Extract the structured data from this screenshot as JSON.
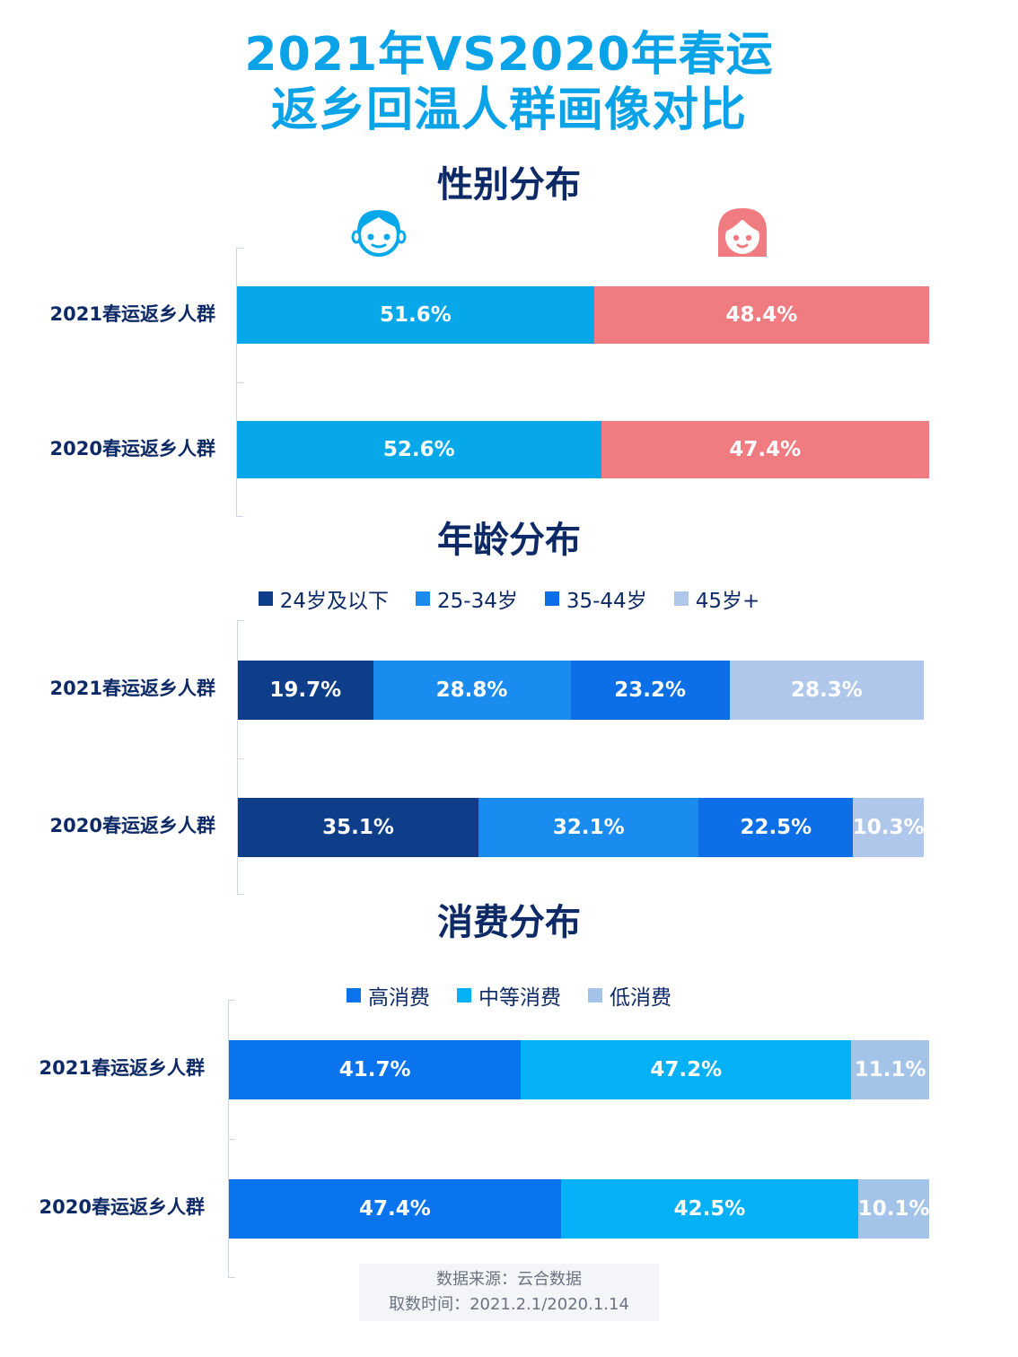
{
  "title": {
    "line1": "2021年VS2020年春运",
    "line2": "返乡回温人群画像对比"
  },
  "footer": {
    "source": "数据来源：云合数据",
    "date": "取数时间：2021.2.1/2020.1.14"
  },
  "icons": {
    "male": "boy-face-icon",
    "female": "girl-face-icon"
  },
  "chart_data": [
    {
      "type": "bar",
      "orientation": "horizontal-stacked-100",
      "title": "性别分布",
      "categories": [
        "2021春运返乡人群",
        "2020春运返乡人群"
      ],
      "series": [
        {
          "color": "#07a8ea",
          "values": [
            51.6,
            52.6
          ],
          "labels": [
            "51.6%",
            "52.6%"
          ]
        },
        {
          "color": "#f07b80",
          "values": [
            48.4,
            47.4
          ],
          "labels": [
            "48.4%",
            "47.4%"
          ]
        }
      ]
    },
    {
      "type": "bar",
      "orientation": "horizontal-stacked-100",
      "title": "年龄分布",
      "categories": [
        "2021春运返乡人群",
        "2020春运返乡人群"
      ],
      "series": [
        {
          "name": "24岁及以下",
          "color": "#0e3d8a",
          "values": [
            19.7,
            35.1
          ],
          "labels": [
            "19.7%",
            "35.1%"
          ]
        },
        {
          "name": "25-34岁",
          "color": "#1a8cf0",
          "values": [
            28.8,
            32.1
          ],
          "labels": [
            "28.8%",
            "32.1%"
          ]
        },
        {
          "name": "35-44岁",
          "color": "#0c6fe8",
          "values": [
            23.2,
            22.5
          ],
          "labels": [
            "23.2%",
            "22.5%"
          ]
        },
        {
          "name": "45岁+",
          "color": "#afc7ea",
          "values": [
            28.3,
            10.3
          ],
          "labels": [
            "28.3%",
            "10.3%"
          ]
        }
      ]
    },
    {
      "type": "bar",
      "orientation": "horizontal-stacked-100",
      "title": "消费分布",
      "categories": [
        "2021春运返乡人群",
        "2020春运返乡人群"
      ],
      "series": [
        {
          "name": "高消费",
          "color": "#0a73ee",
          "values": [
            41.7,
            47.4
          ],
          "labels": [
            "41.7%",
            "47.4%"
          ]
        },
        {
          "name": "中等消费",
          "color": "#04b1f6",
          "values": [
            47.2,
            42.5
          ],
          "labels": [
            "47.2%",
            "42.5%"
          ]
        },
        {
          "name": "低消费",
          "color": "#a3c4e8",
          "values": [
            11.1,
            10.1
          ],
          "labels": [
            "11.1%",
            "10.1%"
          ]
        }
      ]
    }
  ]
}
